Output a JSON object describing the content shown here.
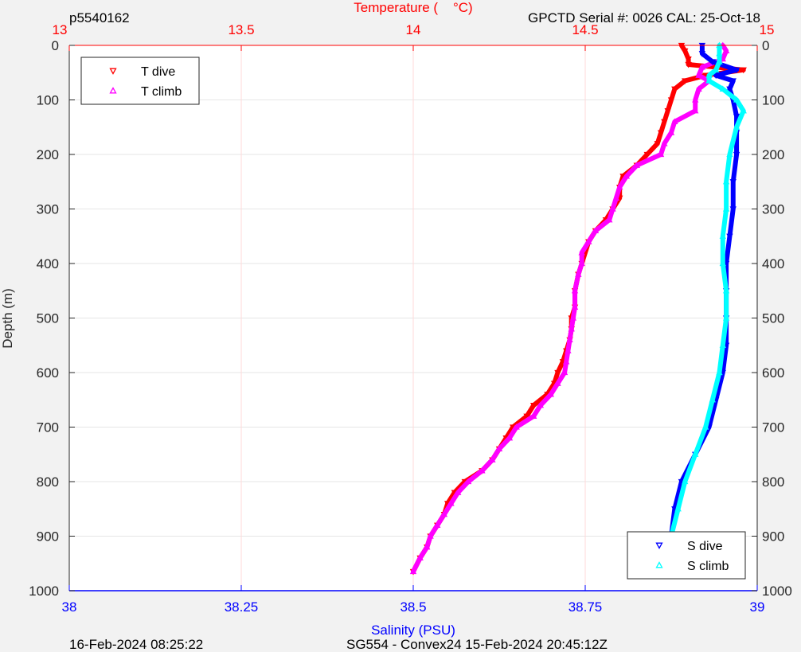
{
  "header": {
    "profile_id": "p5540162",
    "sensor_info": "GPCTD Serial #: 0026 CAL: 25-Oct-18"
  },
  "footer": {
    "generated": "16-Feb-2024 08:25:22",
    "mission": "SG554 - Convex24 15-Feb-2024 20:45:12Z"
  },
  "colors": {
    "t_dive": "#ff0000",
    "t_climb": "#ff00ff",
    "s_dive": "#0000ff",
    "s_climb": "#00ffff",
    "temp_axis": "#ff0000",
    "sal_axis": "#0000ff",
    "depth_axis": "#262626"
  },
  "chart_data": {
    "type": "scatter",
    "ylabel": "Depth (m)",
    "top_xlabel": "Temperature (    °C)",
    "bottom_xlabel": "Salinity (PSU)",
    "depth_lim": [
      0,
      1000
    ],
    "depth_reversed": true,
    "depth_ticks": [
      "0",
      "100",
      "200",
      "300",
      "400",
      "500",
      "600",
      "700",
      "800",
      "900",
      "1000"
    ],
    "temp_lim": [
      13,
      15
    ],
    "temp_ticks": [
      "13",
      "13.5",
      "14",
      "14.5",
      "15"
    ],
    "sal_lim": [
      38,
      39
    ],
    "sal_ticks": [
      "38",
      "38.25",
      "38.5",
      "38.75",
      "39"
    ],
    "grid": true,
    "legends": {
      "temperature": {
        "position": "top-left",
        "entries": [
          "T dive",
          "T climb"
        ]
      },
      "salinity": {
        "position": "bottom-right",
        "entries": [
          "S dive",
          "S climb"
        ]
      }
    },
    "series": [
      {
        "name": "T dive",
        "axis": "temperature",
        "marker": "triangle-down",
        "depth": [
          0,
          10,
          25,
          35,
          45,
          55,
          65,
          80,
          100,
          120,
          140,
          160,
          180,
          200,
          220,
          240,
          260,
          280,
          300,
          320,
          340,
          360,
          380,
          400,
          420,
          450,
          480,
          500,
          520,
          540,
          560,
          580,
          600,
          620,
          640,
          660,
          680,
          700,
          720,
          740,
          760,
          780,
          800,
          820,
          840,
          860,
          880,
          900,
          920,
          940,
          965
        ],
        "values": [
          14.78,
          14.79,
          14.8,
          14.8,
          14.96,
          14.85,
          14.79,
          14.76,
          14.75,
          14.74,
          14.73,
          14.72,
          14.71,
          14.68,
          14.65,
          14.61,
          14.6,
          14.6,
          14.58,
          14.56,
          14.53,
          14.51,
          14.5,
          14.49,
          14.48,
          14.47,
          14.47,
          14.46,
          14.46,
          14.455,
          14.445,
          14.435,
          14.42,
          14.41,
          14.39,
          14.35,
          14.33,
          14.29,
          14.27,
          14.25,
          14.23,
          14.2,
          14.15,
          14.12,
          14.1,
          14.09,
          14.07,
          14.05,
          14.04,
          14.02,
          14.0
        ]
      },
      {
        "name": "T climb",
        "axis": "temperature",
        "marker": "triangle-up",
        "depth": [
          0,
          10,
          25,
          40,
          55,
          65,
          80,
          100,
          120,
          140,
          160,
          180,
          200,
          220,
          240,
          260,
          280,
          300,
          320,
          340,
          360,
          380,
          400,
          420,
          450,
          480,
          500,
          520,
          540,
          560,
          580,
          600,
          620,
          640,
          660,
          680,
          700,
          720,
          740,
          760,
          780,
          800,
          820,
          840,
          860,
          880,
          900,
          920,
          940,
          965
        ],
        "values": [
          14.9,
          14.91,
          14.9,
          14.84,
          14.83,
          14.86,
          14.83,
          14.82,
          14.82,
          14.76,
          14.75,
          14.73,
          14.72,
          14.65,
          14.62,
          14.6,
          14.59,
          14.58,
          14.57,
          14.53,
          14.51,
          14.49,
          14.49,
          14.48,
          14.47,
          14.47,
          14.465,
          14.46,
          14.455,
          14.45,
          14.445,
          14.44,
          14.42,
          14.4,
          14.37,
          14.35,
          14.3,
          14.28,
          14.25,
          14.23,
          14.2,
          14.16,
          14.13,
          14.11,
          14.09,
          14.07,
          14.05,
          14.04,
          14.02,
          14.0
        ]
      },
      {
        "name": "S dive",
        "axis": "salinity",
        "marker": "triangle-down",
        "depth": [
          0,
          15,
          30,
          45,
          55,
          65,
          80,
          100,
          130,
          160,
          200,
          250,
          300,
          350,
          400,
          450,
          500,
          550,
          600,
          650,
          700,
          750,
          800,
          850,
          900,
          965
        ],
        "values": [
          38.92,
          38.92,
          38.935,
          38.97,
          38.94,
          38.965,
          38.96,
          38.965,
          38.97,
          38.97,
          38.97,
          38.965,
          38.965,
          38.96,
          38.955,
          38.955,
          38.955,
          38.955,
          38.95,
          38.94,
          38.93,
          38.91,
          38.89,
          38.88,
          38.875,
          38.87
        ]
      },
      {
        "name": "S climb",
        "axis": "salinity",
        "marker": "triangle-up",
        "depth": [
          0,
          15,
          30,
          45,
          55,
          65,
          80,
          100,
          120,
          150,
          200,
          250,
          300,
          350,
          400,
          450,
          500,
          550,
          600,
          650,
          700,
          750,
          800,
          850,
          900,
          965
        ],
        "values": [
          38.945,
          38.945,
          38.945,
          38.94,
          38.93,
          38.93,
          38.95,
          38.97,
          38.98,
          38.97,
          38.96,
          38.955,
          38.955,
          38.95,
          38.95,
          38.955,
          38.955,
          38.95,
          38.945,
          38.935,
          38.925,
          38.91,
          38.895,
          38.885,
          38.875,
          38.87
        ]
      }
    ]
  }
}
